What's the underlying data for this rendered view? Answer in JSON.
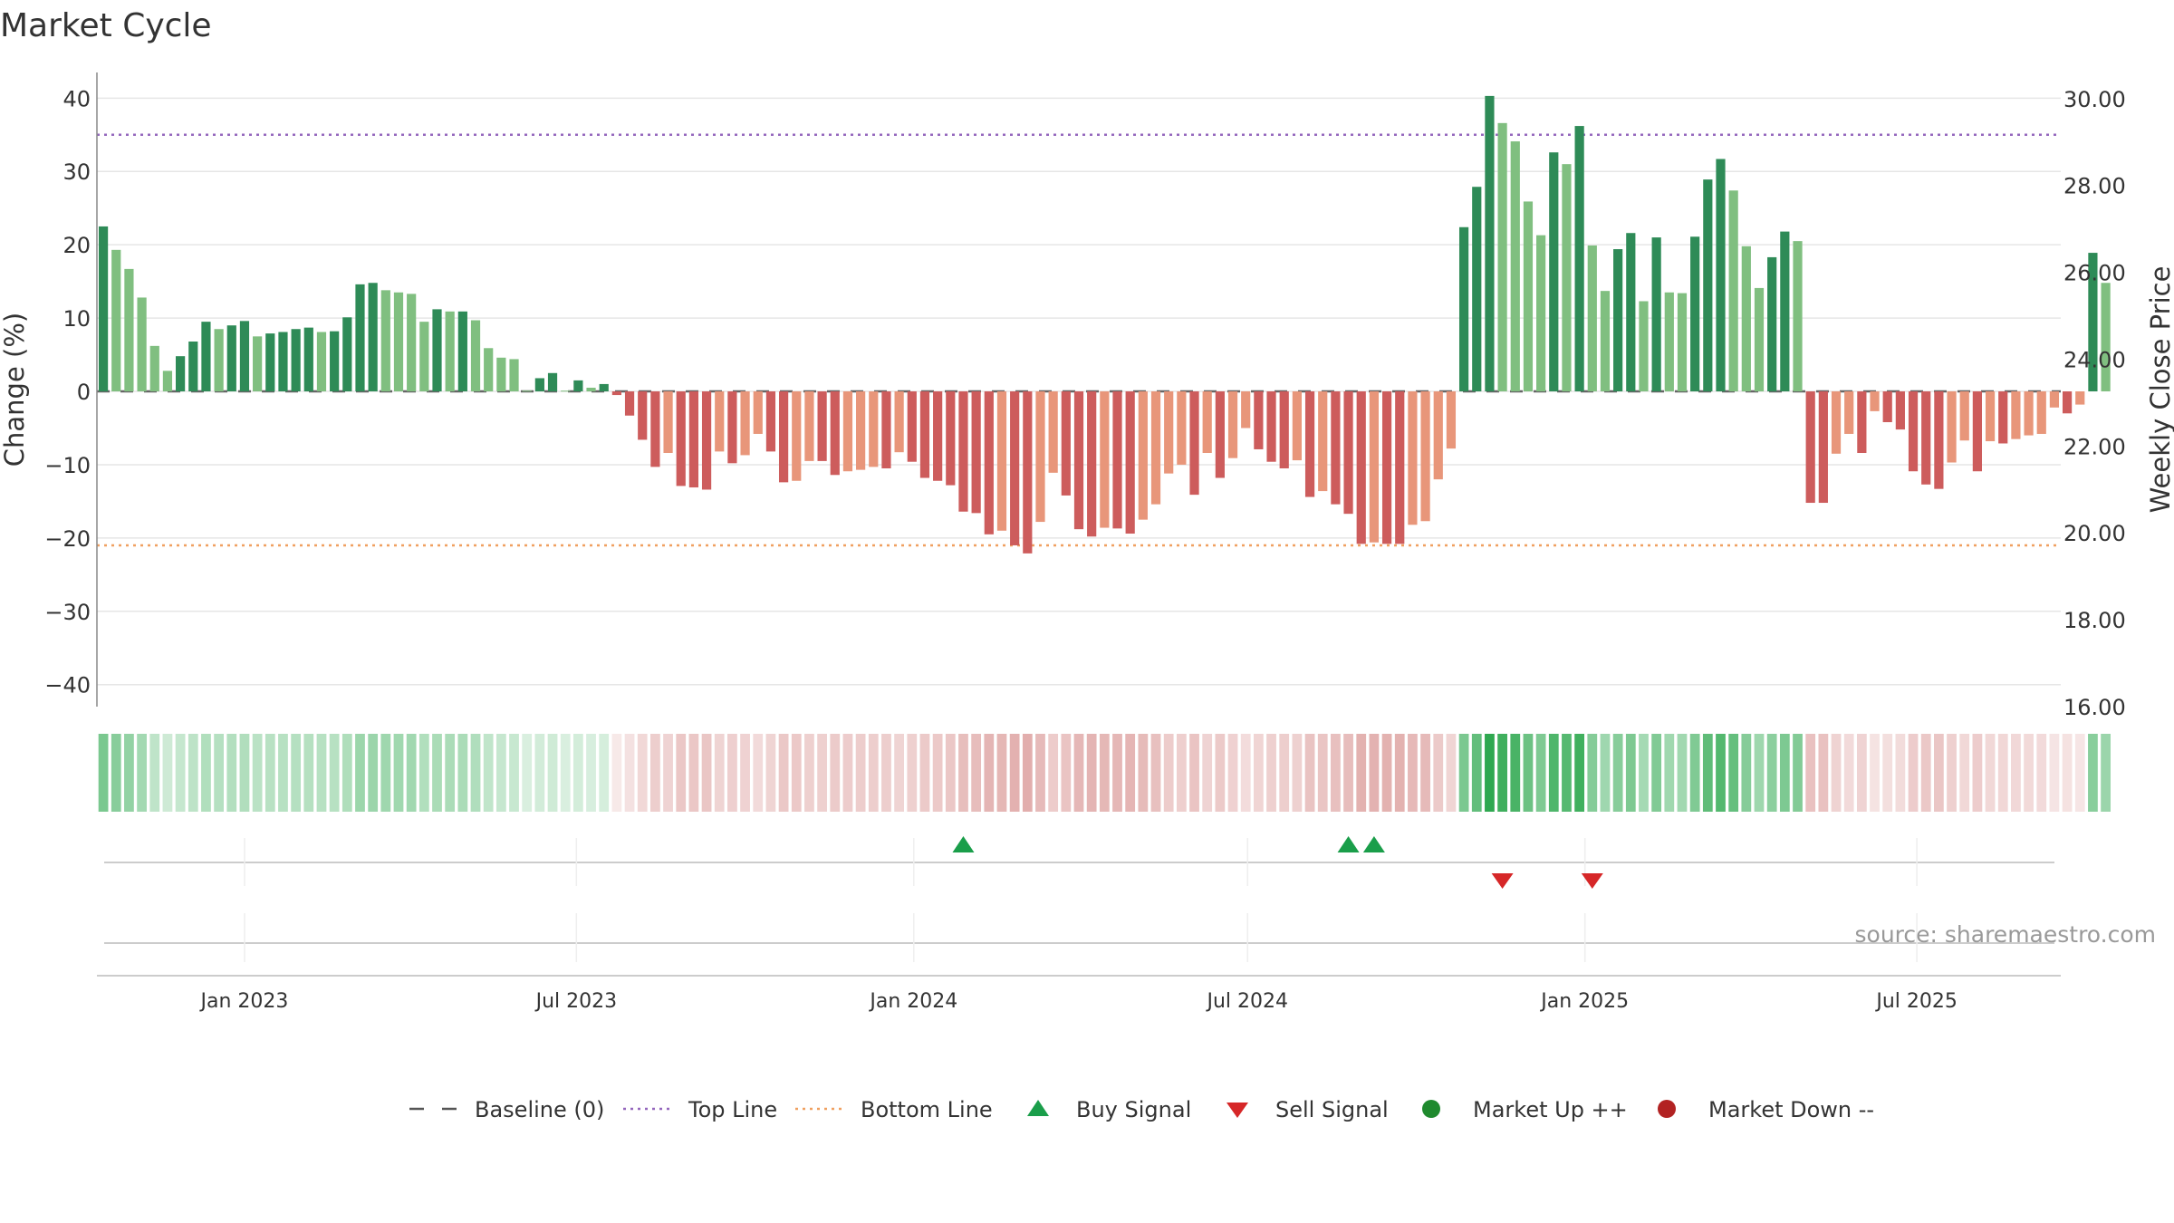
{
  "title": "Market Cycle",
  "source": "source: sharemaestro.com",
  "chart_data": {
    "type": "bar",
    "title": "Market Cycle",
    "ylabel": "Change (%)",
    "ylabel_right": "Weekly Close Price",
    "ylim": [
      -43,
      43.5
    ],
    "ylim_right": [
      16,
      30.6
    ],
    "yticks": [
      "40",
      "30",
      "20",
      "10",
      "0",
      "−10",
      "−20",
      "−30",
      "−40"
    ],
    "yticks_right": [
      "30.00",
      "28.00",
      "26.00",
      "24.00",
      "22.00",
      "20.00",
      "18.00",
      "16.00"
    ],
    "x_start": "2022-10-16",
    "x_end": "2025-09-14",
    "week_step_days": 7,
    "xticks": [
      {
        "date": "2023-01-01",
        "label": "Jan 2023"
      },
      {
        "date": "2023-07-01",
        "label": "Jul 2023"
      },
      {
        "date": "2024-01-01",
        "label": "Jan 2024"
      },
      {
        "date": "2024-07-01",
        "label": "Jul 2024"
      },
      {
        "date": "2025-01-01",
        "label": "Jan 2025"
      },
      {
        "date": "2025-07-01",
        "label": "Jul 2025"
      }
    ],
    "top_line": 35,
    "bottom_line": -21,
    "baseline": 0,
    "values": [
      22.5,
      19.3,
      16.7,
      12.8,
      6.2,
      2.8,
      4.8,
      6.8,
      9.5,
      8.5,
      9.0,
      9.6,
      7.5,
      7.9,
      8.1,
      8.5,
      8.7,
      8.1,
      8.2,
      10.1,
      14.6,
      14.8,
      13.8,
      13.5,
      13.3,
      9.5,
      11.2,
      10.9,
      10.9,
      9.7,
      5.9,
      4.6,
      4.4,
      0.1,
      1.8,
      2.5,
      0.1,
      1.5,
      0.5,
      1.0,
      -0.5,
      -3.3,
      -6.6,
      -10.3,
      -8.4,
      -12.9,
      -13.1,
      -13.4,
      -8.2,
      -9.8,
      -8.7,
      -5.8,
      -8.2,
      -12.4,
      -12.2,
      -9.5,
      -9.5,
      -11.4,
      -10.9,
      -10.7,
      -10.3,
      -10.5,
      -8.3,
      -9.6,
      -11.8,
      -12.2,
      -12.8,
      -16.4,
      -16.6,
      -19.5,
      -19.0,
      -21.0,
      -22.1,
      -17.8,
      -11.1,
      -14.2,
      -18.8,
      -19.8,
      -18.6,
      -18.7,
      -19.4,
      -17.5,
      -15.4,
      -11.2,
      -10.0,
      -14.1,
      -8.4,
      -11.8,
      -9.1,
      -5.0,
      -7.9,
      -9.6,
      -10.5,
      -9.4,
      -14.4,
      -13.6,
      -15.4,
      -16.7,
      -20.8,
      -20.6,
      -20.8,
      -20.8,
      -18.2,
      -17.7,
      -12.0,
      -7.8,
      22.4,
      27.9,
      40.3,
      36.6,
      34.1,
      25.9,
      21.3,
      32.6,
      31.0,
      36.2,
      19.9,
      13.7,
      19.4,
      21.6,
      12.3,
      21.0,
      13.5,
      13.4,
      21.1,
      28.9,
      31.7,
      27.4,
      19.8,
      14.1,
      18.3,
      21.8,
      20.5,
      -15.2,
      -15.2,
      -8.5,
      -5.8,
      -8.4,
      -2.7,
      -4.2,
      -5.2,
      -10.9,
      -12.7,
      -13.3,
      -9.7,
      -6.7,
      -10.9,
      -6.8,
      -7.1,
      -6.5,
      -6.0,
      -5.8,
      -2.2,
      -3.0,
      -1.8,
      18.9,
      14.8
    ],
    "buy_signals": [
      "2024-01-28",
      "2024-08-25",
      "2024-09-08"
    ],
    "sell_signals": [
      "2024-11-17",
      "2025-01-05"
    ]
  },
  "legend": [
    {
      "label": "Baseline (0)",
      "symbol": "dash",
      "color": "#555555"
    },
    {
      "label": "Top Line",
      "symbol": "dot",
      "color": "#9467bd"
    },
    {
      "label": "Bottom Line",
      "symbol": "dot",
      "color": "#f0a060"
    },
    {
      "label": "Buy Signal",
      "symbol": "triangle-up",
      "color": "#1a9e4a"
    },
    {
      "label": "Sell Signal",
      "symbol": "triangle-down",
      "color": "#d62728"
    },
    {
      "label": "Market Up ++",
      "symbol": "circle",
      "color": "#1f8a2e"
    },
    {
      "label": "Market Down --",
      "symbol": "circle",
      "color": "#b22222"
    }
  ],
  "colors": {
    "bar_up_dark": "#2e8b57",
    "bar_up_light": "#80bf80",
    "bar_down_dark": "#cd5c5c",
    "bar_down_light": "#e8967a",
    "grid": "#e6e6e6"
  }
}
